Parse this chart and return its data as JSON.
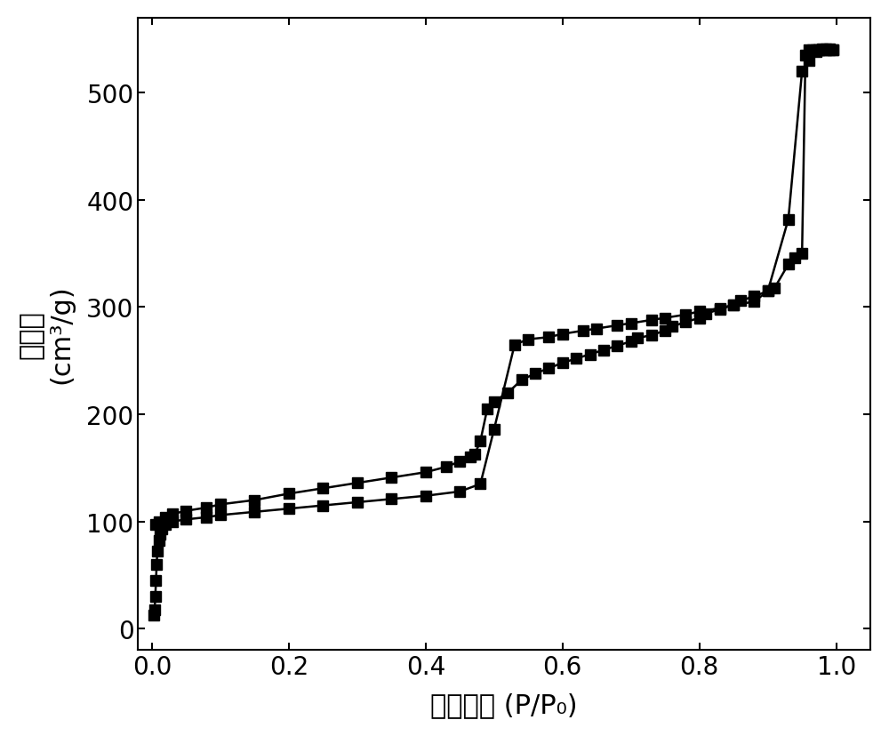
{
  "adsorption_x": [
    0.003,
    0.004,
    0.005,
    0.006,
    0.007,
    0.008,
    0.01,
    0.012,
    0.015,
    0.02,
    0.03,
    0.05,
    0.08,
    0.1,
    0.15,
    0.2,
    0.25,
    0.3,
    0.35,
    0.4,
    0.45,
    0.48,
    0.5,
    0.53,
    0.55,
    0.58,
    0.6,
    0.63,
    0.65,
    0.68,
    0.7,
    0.73,
    0.75,
    0.78,
    0.8,
    0.83,
    0.85,
    0.88,
    0.9,
    0.93,
    0.95,
    0.96,
    0.97,
    0.975,
    0.98,
    0.985,
    0.99,
    0.995
  ],
  "adsorption_y": [
    13,
    18,
    30,
    45,
    60,
    72,
    82,
    88,
    93,
    97,
    100,
    102,
    104,
    106,
    109,
    112,
    115,
    118,
    121,
    124,
    128,
    135,
    186,
    265,
    270,
    272,
    275,
    278,
    280,
    283,
    285,
    288,
    290,
    293,
    296,
    299,
    302,
    305,
    315,
    382,
    520,
    530,
    538,
    540,
    541,
    541,
    541,
    540
  ],
  "desorption_x": [
    0.995,
    0.99,
    0.985,
    0.98,
    0.975,
    0.97,
    0.965,
    0.96,
    0.955,
    0.95,
    0.94,
    0.93,
    0.91,
    0.9,
    0.88,
    0.86,
    0.85,
    0.83,
    0.81,
    0.8,
    0.78,
    0.76,
    0.75,
    0.73,
    0.71,
    0.7,
    0.68,
    0.66,
    0.64,
    0.62,
    0.6,
    0.58,
    0.56,
    0.54,
    0.52,
    0.5,
    0.49,
    0.48,
    0.472,
    0.465,
    0.45,
    0.43,
    0.4,
    0.35,
    0.3,
    0.25,
    0.2,
    0.15,
    0.1,
    0.08,
    0.05,
    0.03,
    0.02,
    0.01,
    0.005
  ],
  "desorption_y": [
    540,
    540,
    540,
    540,
    540,
    540,
    540,
    540,
    535,
    350,
    346,
    340,
    318,
    315,
    310,
    306,
    302,
    298,
    294,
    290,
    286,
    282,
    278,
    274,
    271,
    268,
    264,
    260,
    256,
    252,
    248,
    243,
    238,
    232,
    220,
    212,
    205,
    175,
    163,
    160,
    156,
    151,
    146,
    141,
    136,
    131,
    126,
    120,
    116,
    113,
    110,
    107,
    104,
    100,
    97
  ],
  "marker": "s",
  "marker_size": 8,
  "line_color": "#000000",
  "line_width": 1.8,
  "xlabel": "相对压力 (P/P₀)",
  "ylabel": "吸附量（cm³/g）",
  "ylabel_line1": "吸附量",
  "ylabel_line2": "(cm³/g)",
  "xlim": [
    -0.02,
    1.05
  ],
  "ylim": [
    -20,
    570
  ],
  "yticks": [
    0,
    100,
    200,
    300,
    400,
    500
  ],
  "xticks": [
    0.0,
    0.2,
    0.4,
    0.6,
    0.8,
    1.0
  ],
  "xlabel_fontsize": 22,
  "ylabel_fontsize": 22,
  "tick_fontsize": 20,
  "background_color": "#ffffff"
}
